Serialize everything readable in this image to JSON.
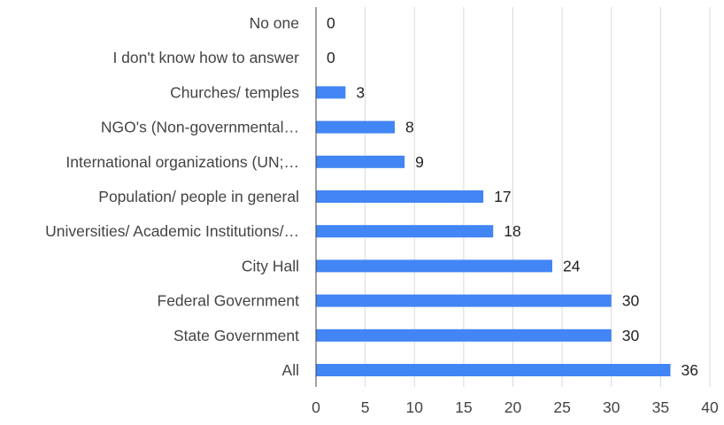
{
  "chart_data": {
    "type": "bar",
    "orientation": "horizontal",
    "categories": [
      "No one",
      "I don't know how to answer",
      "Churches/ temples",
      "NGO's (Non-governmental…",
      "International organizations (UN;…",
      "Population/ people in general",
      "Universities/ Academic Institutions/…",
      "City Hall",
      "Federal Government",
      "State Government",
      "All"
    ],
    "values": [
      0,
      0,
      3,
      8,
      9,
      17,
      18,
      24,
      30,
      30,
      36
    ],
    "xlim": [
      0,
      40
    ],
    "xticks": [
      0,
      5,
      10,
      15,
      20,
      25,
      30,
      35,
      40
    ],
    "grid": true,
    "data_labels": true,
    "bar_color": "#4285f4",
    "title": "",
    "xlabel": "",
    "ylabel": ""
  }
}
